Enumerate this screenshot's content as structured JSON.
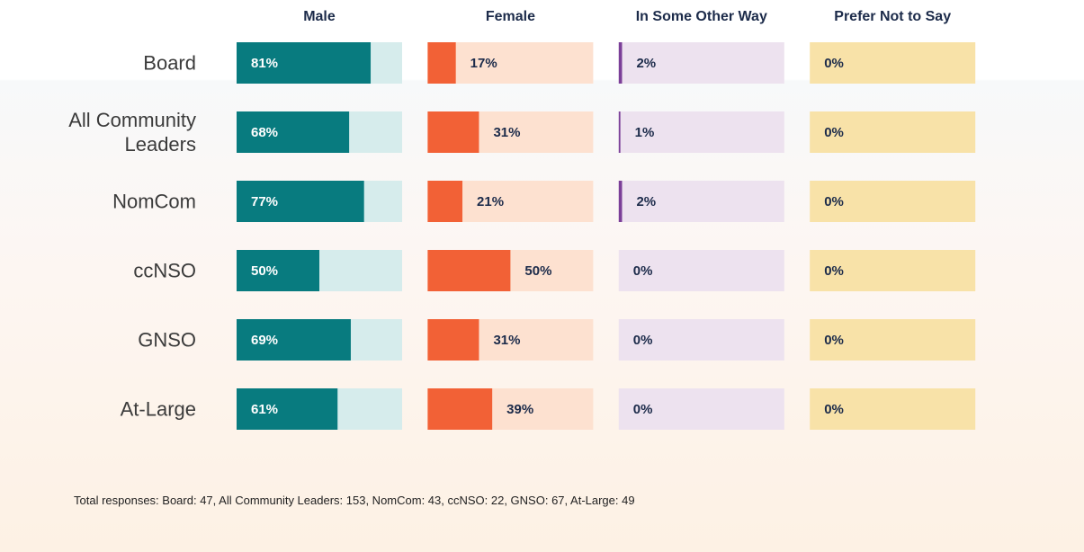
{
  "chart_data": {
    "type": "bar",
    "categories": [
      "Board",
      "All Community Leaders",
      "NomCom",
      "ccNSO",
      "GNSO",
      "At-Large"
    ],
    "xlim": [
      0,
      100
    ],
    "series": [
      {
        "name": "Male",
        "color": "#087b7f",
        "track_color": "#d6ecec",
        "label_position": "inside",
        "values": [
          81,
          68,
          77,
          50,
          69,
          61
        ],
        "value_labels": [
          "81%",
          "68%",
          "77%",
          "50%",
          "69%",
          "61%"
        ]
      },
      {
        "name": "Female",
        "color": "#f26136",
        "track_color": "#fde1d0",
        "label_position": "outside",
        "values": [
          17,
          31,
          21,
          50,
          31,
          39
        ],
        "value_labels": [
          "17%",
          "31%",
          "21%",
          "50%",
          "31%",
          "39%"
        ]
      },
      {
        "name": "In Some Other Way",
        "color": "#7b3f98",
        "track_color": "#ede2ef",
        "label_position": "outside",
        "values": [
          2,
          1,
          2,
          0,
          0,
          0
        ],
        "value_labels": [
          "2%",
          "1%",
          "2%",
          "0%",
          "0%",
          "0%"
        ]
      },
      {
        "name": "Prefer Not to Say",
        "color": "#e9b830",
        "track_color": "#f8e2a8",
        "label_position": "outside",
        "values": [
          0,
          0,
          0,
          0,
          0,
          0
        ],
        "value_labels": [
          "0%",
          "0%",
          "0%",
          "0%",
          "0%",
          "0%"
        ]
      }
    ],
    "note": "Total responses: Board: 47, All Community Leaders: 153, NomCom: 43, ccNSO: 22, GNSO: 67, At-Large: 49"
  }
}
